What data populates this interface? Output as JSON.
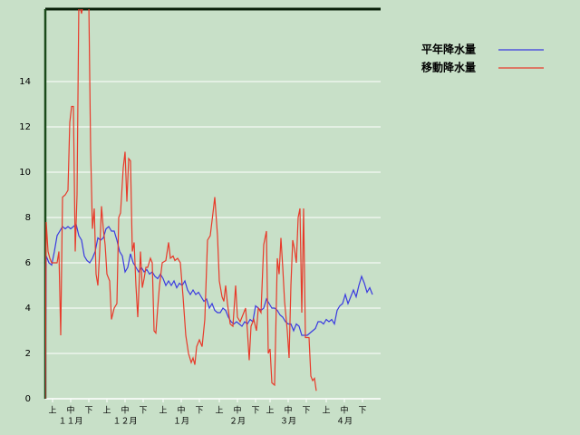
{
  "chart_data": {
    "type": "line",
    "xlim": [
      0,
      185
    ],
    "ylim": [
      0,
      17.2
    ],
    "yticks": [
      0,
      2,
      4,
      6,
      8,
      10,
      12,
      14
    ],
    "xticks": [
      {
        "value": 4,
        "label": "上"
      },
      {
        "value": 14,
        "label": "中"
      },
      {
        "value": 24,
        "label": "下"
      },
      {
        "value": 34,
        "label": "上"
      },
      {
        "value": 44,
        "label": "中"
      },
      {
        "value": 54,
        "label": "下"
      },
      {
        "value": 65,
        "label": "上"
      },
      {
        "value": 75,
        "label": "中"
      },
      {
        "value": 85,
        "label": "下"
      },
      {
        "value": 96,
        "label": "上"
      },
      {
        "value": 106,
        "label": "中"
      },
      {
        "value": 116,
        "label": "下"
      },
      {
        "value": 124,
        "label": "上"
      },
      {
        "value": 134,
        "label": "中"
      },
      {
        "value": 144,
        "label": "下"
      },
      {
        "value": 155,
        "label": "上"
      },
      {
        "value": 165,
        "label": "中"
      },
      {
        "value": 175,
        "label": "下"
      }
    ],
    "month_ticks": [
      {
        "value": 14,
        "label": "１１月"
      },
      {
        "value": 44,
        "label": "１２月"
      },
      {
        "value": 75,
        "label": "１月"
      },
      {
        "value": 106,
        "label": "２月"
      },
      {
        "value": 134,
        "label": "３月"
      },
      {
        "value": 165,
        "label": "４月"
      }
    ],
    "grid": true,
    "series": [
      {
        "name": "平年降水量",
        "color": "#3a3ae0",
        "x": [
          0,
          0.5,
          2,
          3.5,
          5,
          6.5,
          8,
          9.5,
          11,
          12.5,
          14,
          15.5,
          17,
          18.5,
          20,
          21.5,
          23,
          24.5,
          26,
          27.5,
          29,
          30.5,
          32,
          33.5,
          35,
          36.5,
          38,
          39.5,
          41,
          42.5,
          44,
          45.5,
          47,
          48.5,
          50,
          51.5,
          53,
          54.5,
          56,
          57.5,
          59,
          60.5,
          62,
          63.5,
          65,
          66.5,
          68,
          69.5,
          71,
          72.5,
          74,
          75.5,
          77,
          78.5,
          80,
          81.5,
          83,
          84.5,
          86,
          87.5,
          89,
          90.5,
          92,
          93.5,
          95,
          96.5,
          98,
          99.5,
          101,
          102.5,
          104,
          105.5,
          107,
          108.5,
          110,
          111.5,
          113,
          114.5,
          116,
          117.5,
          119,
          120.5,
          122,
          123.5,
          125,
          126.5,
          128,
          129.5,
          131,
          132.5,
          134,
          135.5,
          137,
          138.5,
          140,
          141.5,
          143,
          144.5,
          146,
          147.5,
          149,
          150.5,
          152,
          153.5,
          155,
          156.5,
          158,
          159.5,
          161,
          162.5,
          164,
          165.5,
          167,
          168.5,
          170,
          171.5,
          173,
          174.5,
          176,
          177.5,
          179,
          180.5
        ],
        "values": [
          0,
          6.3,
          6.0,
          5.9,
          6.5,
          7.2,
          7.4,
          7.6,
          7.5,
          7.6,
          7.5,
          7.6,
          7.7,
          7.2,
          7.0,
          6.3,
          6.1,
          6.0,
          6.2,
          6.5,
          7.1,
          7.0,
          7.1,
          7.5,
          7.6,
          7.4,
          7.4,
          7.0,
          6.5,
          6.3,
          5.6,
          5.8,
          6.4,
          6.0,
          5.8,
          5.6,
          5.8,
          5.6,
          5.7,
          5.5,
          5.6,
          5.4,
          5.3,
          5.5,
          5.3,
          5.0,
          5.2,
          5.0,
          5.2,
          4.9,
          5.1,
          5.0,
          5.2,
          4.8,
          4.6,
          4.8,
          4.6,
          4.7,
          4.5,
          4.3,
          4.4,
          4.0,
          4.2,
          3.9,
          3.8,
          3.8,
          4.0,
          3.9,
          3.6,
          3.4,
          3.3,
          3.4,
          3.3,
          3.2,
          3.4,
          3.3,
          3.5,
          3.4,
          4.1,
          4.0,
          3.9,
          4.0,
          4.4,
          4.2,
          4.0,
          4.0,
          3.9,
          3.7,
          3.6,
          3.4,
          3.3,
          3.3,
          3.0,
          3.3,
          3.2,
          2.8,
          2.8,
          2.8,
          2.9,
          3.0,
          3.1,
          3.4,
          3.4,
          3.3,
          3.5,
          3.4,
          3.5,
          3.3,
          3.9,
          4.1,
          4.2,
          4.6,
          4.2,
          4.5,
          4.8,
          4.5,
          5.0,
          5.4,
          5.1,
          4.7,
          4.9,
          4.6
        ]
      },
      {
        "name": "移動降水量",
        "color": "#e83a2a",
        "x": [
          0,
          0.5,
          1.5,
          2.5,
          3.5,
          5,
          6.5,
          7.5,
          8.5,
          9.5,
          11,
          12.5,
          13.5,
          14.5,
          15.5,
          16.5,
          17.5,
          18.5,
          20,
          21,
          22.5,
          24,
          25,
          26,
          27,
          28,
          29,
          30,
          31,
          32,
          33,
          34,
          35.5,
          36.5,
          38,
          39.5,
          40.5,
          41.5,
          43,
          44,
          45,
          46,
          47,
          48,
          49,
          50,
          51,
          52.5,
          53.5,
          54.5,
          55.5,
          56.5,
          58,
          59,
          60,
          61,
          62,
          63,
          64.5,
          66.5,
          68,
          69,
          70.5,
          71.5,
          73,
          74.5,
          76,
          77.5,
          79,
          80.5,
          81.5,
          82.5,
          83.5,
          85,
          86.5,
          88,
          89.5,
          91,
          92.5,
          93.5,
          95,
          96,
          97.5,
          98.5,
          99.5,
          100.5,
          102,
          103.5,
          105,
          106,
          107.5,
          109,
          110.5,
          111.5,
          112.5,
          113.5,
          115,
          116.5,
          117.5,
          119,
          120.5,
          122,
          123,
          124,
          125,
          126.5,
          128,
          129,
          130,
          131,
          132,
          133.5,
          134.5,
          135.5,
          136.5,
          137.5,
          138.5,
          139.5,
          140.5,
          141.5,
          142.5,
          143.5,
          144.5,
          145.5,
          146.5,
          147.5,
          148.5,
          149.5
        ],
        "values": [
          0,
          7.8,
          6.5,
          6.2,
          6.0,
          6.0,
          6.0,
          6.5,
          2.8,
          8.9,
          9.0,
          9.2,
          12.2,
          12.9,
          12.9,
          6.5,
          9.0,
          17.5,
          17.0,
          17.5,
          17.3,
          17.5,
          11,
          7.5,
          8.4,
          5.5,
          5.0,
          6.5,
          8.5,
          7.5,
          6.8,
          5.5,
          5.2,
          3.5,
          4.0,
          4.2,
          8.0,
          8.2,
          10.2,
          10.9,
          8.7,
          10.6,
          10.5,
          6.5,
          6.9,
          5.0,
          3.6,
          6.5,
          4.9,
          5.3,
          5.8,
          5.8,
          6.2,
          6.0,
          3.0,
          2.9,
          4.0,
          5.0,
          6.0,
          6.1,
          6.9,
          6.2,
          6.3,
          6.1,
          6.2,
          6.0,
          4.5,
          2.8,
          2.0,
          1.6,
          1.8,
          1.5,
          2.3,
          2.6,
          2.3,
          3.5,
          7.0,
          7.2,
          8.2,
          8.9,
          7.2,
          5.2,
          4.5,
          4.3,
          5.0,
          4.2,
          3.3,
          3.2,
          5.0,
          3.6,
          3.4,
          3.7,
          4.0,
          3.0,
          1.7,
          3.2,
          3.5,
          3.0,
          4.0,
          3.8,
          6.8,
          7.4,
          2.0,
          2.2,
          0.7,
          0.6,
          6.2,
          5.5,
          7.1,
          5.8,
          4.3,
          3.0,
          1.8,
          5.0,
          7.0,
          6.6,
          6.0,
          8.0,
          8.4,
          3.8,
          8.4,
          2.7,
          2.7,
          2.7,
          1.0,
          0.8,
          0.9,
          0.35
        ]
      }
    ]
  }
}
